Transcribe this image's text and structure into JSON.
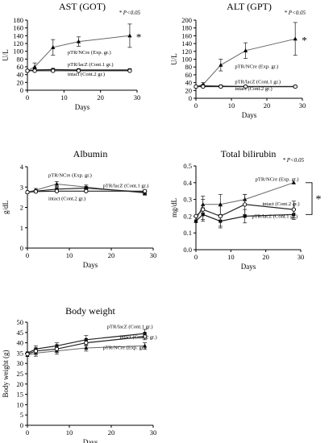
{
  "figure": {
    "panels": [
      {
        "title": "AST (GOT)",
        "ylabel": "U/L",
        "xlabel": "Days",
        "significance": "* P<0.05",
        "marker_star": "*"
      },
      {
        "title": "ALT (GPT)",
        "ylabel": "U/L",
        "xlabel": "Days",
        "significance": "* P<0.05",
        "marker_star": "*"
      },
      {
        "title": "Albumin",
        "ylabel": "g/dL",
        "xlabel": "Days",
        "significance": "",
        "marker_star": ""
      },
      {
        "title": "Total bilirubin",
        "ylabel": "mg/dL",
        "xlabel": "Days",
        "significance": "* P<0.05",
        "marker_star": "*"
      },
      {
        "title": "Body weight",
        "ylabel": "Body weight (g)",
        "xlabel": "Days",
        "significance": "",
        "marker_star": ""
      }
    ]
  },
  "chart_data": [
    {
      "type": "line",
      "title": "AST (GOT)",
      "xlabel": "Days",
      "ylabel": "U/L",
      "xlim": [
        0,
        30
      ],
      "ylim": [
        0,
        180
      ],
      "x_ticks": [
        0,
        10,
        20,
        30
      ],
      "y_ticks": [
        0,
        20,
        40,
        60,
        80,
        100,
        120,
        140,
        160,
        180
      ],
      "x": [
        0,
        2,
        7,
        14,
        28
      ],
      "series": [
        {
          "name": "pTR/NCre (Exp. gr.)",
          "marker": "triangle",
          "values": [
            50,
            60,
            110,
            125,
            140
          ],
          "errors": [
            0,
            10,
            20,
            12,
            30
          ]
        },
        {
          "name": "pTR/lacZ (Cont.1 gr.)",
          "marker": "square",
          "values": [
            50,
            52,
            53,
            52,
            52
          ],
          "errors": [
            0,
            3,
            3,
            3,
            3
          ]
        },
        {
          "name": "intact (Cont.2 gr.)",
          "marker": "circle",
          "values": [
            50,
            50,
            50,
            50,
            50
          ],
          "errors": [
            0,
            2,
            2,
            2,
            2
          ]
        }
      ],
      "annotations": [
        {
          "text": "pTR/NCre (Exp. gr.)",
          "x": 11,
          "y": 93
        },
        {
          "text": "pTR/lacZ (Cont.1 gr.)",
          "x": 11,
          "y": 62
        },
        {
          "text": "intact (Cont.2 gr.)",
          "x": 11,
          "y": 37
        }
      ],
      "grid": false
    },
    {
      "type": "line",
      "title": "ALT (GPT)",
      "xlabel": "Days",
      "ylabel": "U/L",
      "xlim": [
        0,
        30
      ],
      "ylim": [
        0,
        200
      ],
      "x_ticks": [
        0,
        10,
        20,
        30
      ],
      "y_ticks": [
        0,
        20,
        40,
        60,
        80,
        100,
        120,
        140,
        160,
        180,
        200
      ],
      "x": [
        0,
        2,
        7,
        14,
        28
      ],
      "series": [
        {
          "name": "pTR/NCre (Exp. gr.)",
          "marker": "triangle",
          "values": [
            30,
            35,
            85,
            122,
            152
          ],
          "errors": [
            0,
            5,
            15,
            20,
            42
          ]
        },
        {
          "name": "pTR/lacZ (Cont.1 gr.)",
          "marker": "square",
          "values": [
            30,
            32,
            31,
            30,
            30
          ],
          "errors": [
            0,
            2,
            2,
            2,
            2
          ]
        },
        {
          "name": "intact (Cont.2 gr.)",
          "marker": "circle",
          "values": [
            30,
            30,
            30,
            30,
            30
          ],
          "errors": [
            0,
            2,
            2,
            2,
            2
          ]
        }
      ],
      "annotations": [
        {
          "text": "pTR/NCre (Exp. gr.)",
          "x": 11,
          "y": 77
        },
        {
          "text": "pTR/lacZ (Cont.1 gr.)",
          "x": 11,
          "y": 38
        },
        {
          "text": "intact (Cont.2 gr.)",
          "x": 11,
          "y": 21
        }
      ],
      "grid": false
    },
    {
      "type": "line",
      "title": "Albumin",
      "xlabel": "Days",
      "ylabel": "g/dL",
      "xlim": [
        0,
        30
      ],
      "ylim": [
        0,
        4
      ],
      "x_ticks": [
        0,
        10,
        20,
        30
      ],
      "y_ticks": [
        0,
        1,
        2,
        3,
        4
      ],
      "x": [
        0,
        2,
        7,
        14,
        28
      ],
      "series": [
        {
          "name": "pTR/NCre (Exp. gr.)",
          "marker": "triangle",
          "values": [
            2.75,
            2.85,
            3.15,
            3.0,
            2.7
          ],
          "errors": [
            0,
            0.08,
            0.12,
            0.1,
            0.1
          ]
        },
        {
          "name": "pTR/lacZ (Cont.1 gr.)",
          "marker": "square",
          "values": [
            2.75,
            2.8,
            2.9,
            2.95,
            2.75
          ],
          "errors": [
            0,
            0.05,
            0.08,
            0.08,
            0.08
          ]
        },
        {
          "name": "intact (Cont.2 gr.)",
          "marker": "circle",
          "values": [
            2.75,
            2.78,
            2.8,
            2.8,
            2.8
          ],
          "errors": [
            0,
            0.05,
            0.05,
            0.05,
            0.05
          ]
        }
      ],
      "annotations": [
        {
          "text": "pTR/NCre (Exp. gr.)",
          "x": 5,
          "y": 3.5
        },
        {
          "text": "pTR/lacZ (Cont.1 gr.)",
          "x": 18,
          "y": 3.0
        },
        {
          "text": "intact (Cont.2 gr.)",
          "x": 5,
          "y": 2.35
        }
      ],
      "grid": false
    },
    {
      "type": "line",
      "title": "Total bilirubin",
      "xlabel": "Days",
      "ylabel": "mg/dL",
      "xlim": [
        0,
        30
      ],
      "ylim": [
        0,
        0.5
      ],
      "x_ticks": [
        0,
        10,
        20,
        30
      ],
      "y_ticks": [
        0,
        0.1,
        0.2,
        0.3,
        0.4,
        0.5
      ],
      "x": [
        0,
        2,
        7,
        14,
        28
      ],
      "series": [
        {
          "name": "pTR/NCre (Exp. gr.)",
          "marker": "triangle",
          "values": [
            0.17,
            0.27,
            0.27,
            0.3,
            0.4
          ],
          "errors": [
            0,
            0.05,
            0.06,
            0.03,
            0
          ]
        },
        {
          "name": "pTR/lacZ (Cont.1 gr.)",
          "marker": "square",
          "values": [
            0.17,
            0.21,
            0.17,
            0.2,
            0.21
          ],
          "errors": [
            0,
            0.04,
            0.04,
            0.04,
            0.03
          ]
        },
        {
          "name": "intact (Cont.2 gr.)",
          "marker": "circle",
          "values": [
            0.2,
            0.24,
            0.2,
            0.27,
            0.24
          ],
          "errors": [
            0,
            0.06,
            0.06,
            0.06,
            0.05
          ]
        }
      ],
      "annotations": [
        {
          "text": "pTR/NCre (Exp. gr.)",
          "x": 17,
          "y": 0.41
        },
        {
          "text": "intact (Cont.2 gr.)",
          "x": 19,
          "y": 0.265
        },
        {
          "text": "pTR/lacZ (Cont.1 gr.)",
          "x": 16,
          "y": 0.19
        }
      ],
      "grid": false
    },
    {
      "type": "line",
      "title": "Body weight",
      "xlabel": "Days",
      "ylabel": "Body weight (g)",
      "xlim": [
        0,
        30
      ],
      "ylim": [
        0,
        50
      ],
      "x_ticks": [
        0,
        10,
        20,
        30
      ],
      "y_ticks": [
        0,
        5,
        10,
        15,
        20,
        25,
        30,
        35,
        40,
        45,
        50
      ],
      "x": [
        0,
        2,
        7,
        14,
        28
      ],
      "series": [
        {
          "name": "pTR/NCre (Exp. gr.)",
          "marker": "triangle",
          "values": [
            34,
            35,
            36,
            37.5,
            38.5
          ],
          "errors": [
            0,
            1.5,
            1.5,
            1.5,
            1.5
          ]
        },
        {
          "name": "pTR/lacZ (Cont.1 gr.)",
          "marker": "square",
          "values": [
            35,
            37,
            38.5,
            41.5,
            44.5
          ],
          "errors": [
            0,
            1.5,
            1.5,
            2,
            2
          ]
        },
        {
          "name": "intact (Cont.2 gr.)",
          "marker": "circle",
          "values": [
            34.5,
            36,
            37,
            40,
            43
          ],
          "errors": [
            0,
            1.5,
            1.5,
            1.5,
            1.5
          ]
        }
      ],
      "annotations": [
        {
          "text": "pTR/lacZ (Cont.1 gr.)",
          "x": 19,
          "y": 47
        },
        {
          "text": "intact (Cont.2 gr.)",
          "x": 22,
          "y": 42
        },
        {
          "text": "pTR/NCre (Exp. gr.)",
          "x": 18,
          "y": 37
        }
      ],
      "grid": false
    }
  ]
}
